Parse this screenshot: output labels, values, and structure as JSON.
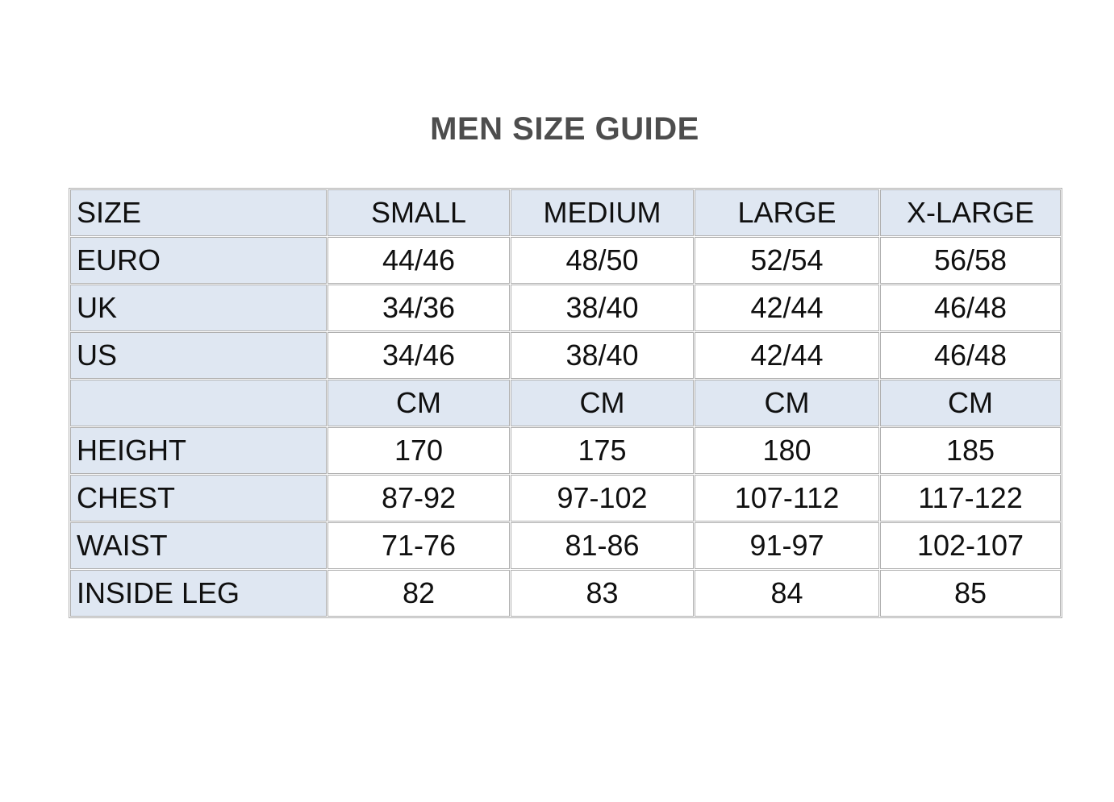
{
  "page": {
    "title": "MEN SIZE GUIDE"
  },
  "colors": {
    "page_bg": "#ffffff",
    "band_bg": "#dfe7f2",
    "border": "#afafaf",
    "title_text": "#4d4d4d",
    "cell_text": "#101010"
  },
  "size_table": {
    "header": {
      "cells": [
        "SIZE",
        "SMALL",
        "MEDIUM",
        "LARGE",
        "X-LARGE"
      ]
    },
    "rows": [
      {
        "label": "EURO",
        "values": [
          "44/46",
          "48/50",
          "52/54",
          "56/58"
        ]
      },
      {
        "label": "UK",
        "values": [
          "34/36",
          "38/40",
          "42/44",
          "46/48"
        ]
      },
      {
        "label": "US",
        "values": [
          "34/46",
          "38/40",
          "42/44",
          "46/48"
        ]
      },
      {
        "label": "",
        "values": [
          "CM",
          "CM",
          "CM",
          "CM"
        ]
      },
      {
        "label": "HEIGHT",
        "values": [
          "170",
          "175",
          "180",
          "185"
        ]
      },
      {
        "label": "CHEST",
        "values": [
          "87-92",
          "97-102",
          "107-112",
          "117-122"
        ]
      },
      {
        "label": "WAIST",
        "values": [
          "71-76",
          "81-86",
          "91-97",
          "102-107"
        ]
      },
      {
        "label": "INSIDE LEG",
        "values": [
          "82",
          "83",
          "84",
          "85"
        ]
      }
    ]
  },
  "chart_data": {
    "type": "table",
    "title": "MEN SIZE GUIDE",
    "columns": [
      "SIZE",
      "SMALL",
      "MEDIUM",
      "LARGE",
      "X-LARGE"
    ],
    "rows": [
      [
        "EURO",
        "44/46",
        "48/50",
        "52/54",
        "56/58"
      ],
      [
        "UK",
        "34/36",
        "38/40",
        "42/44",
        "46/48"
      ],
      [
        "US",
        "34/46",
        "38/40",
        "42/44",
        "46/48"
      ],
      [
        "",
        "CM",
        "CM",
        "CM",
        "CM"
      ],
      [
        "HEIGHT",
        "170",
        "175",
        "180",
        "185"
      ],
      [
        "CHEST",
        "87-92",
        "97-102",
        "107-112",
        "117-122"
      ],
      [
        "WAIST",
        "71-76",
        "81-86",
        "91-97",
        "102-107"
      ],
      [
        "INSIDE LEG",
        "82",
        "83",
        "84",
        "85"
      ]
    ]
  }
}
